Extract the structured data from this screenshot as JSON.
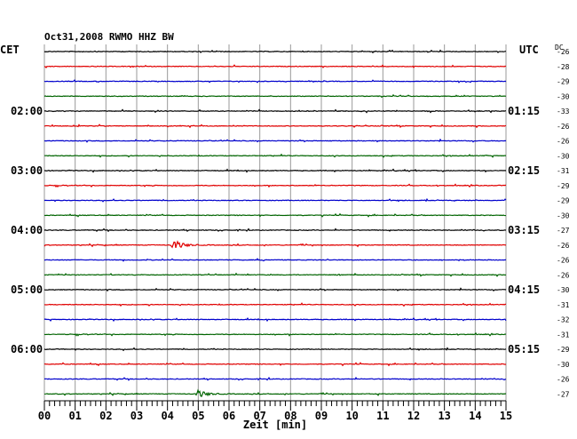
{
  "title": "Oct31,2008   RWMO HHZ BW",
  "left_axis_label": "CET",
  "right_axis_label": "UTC",
  "dc_label": "DC",
  "chart_data": {
    "type": "line",
    "title": "Oct31,2008   RWMO HHZ BW",
    "xlabel": "Zeit [min]",
    "xlim": [
      0,
      15
    ],
    "x_ticks": [
      "00",
      "01",
      "02",
      "03",
      "04",
      "05",
      "06",
      "07",
      "08",
      "09",
      "10",
      "11",
      "12",
      "13",
      "14",
      "15"
    ],
    "trace_colors": [
      "#000000",
      "#e00000",
      "#0000cc",
      "#006400"
    ],
    "traces": [
      {
        "color": "#000000",
        "dc": "-26"
      },
      {
        "color": "#e00000",
        "dc": "-28"
      },
      {
        "color": "#0000cc",
        "dc": "-29"
      },
      {
        "color": "#006400",
        "dc": "-30"
      },
      {
        "color": "#000000",
        "dc": "-33",
        "cet": "02:00",
        "utc": "01:15"
      },
      {
        "color": "#e00000",
        "dc": "-26"
      },
      {
        "color": "#0000cc",
        "dc": "-26"
      },
      {
        "color": "#006400",
        "dc": "-30"
      },
      {
        "color": "#000000",
        "dc": "-31",
        "cet": "03:00",
        "utc": "02:15"
      },
      {
        "color": "#e00000",
        "dc": "-29"
      },
      {
        "color": "#0000cc",
        "dc": "-29"
      },
      {
        "color": "#006400",
        "dc": "-30"
      },
      {
        "color": "#000000",
        "dc": "-27",
        "cet": "04:00",
        "utc": "03:15"
      },
      {
        "color": "#e00000",
        "dc": "-26",
        "event": {
          "x_min": 4.2,
          "amplitude": "medium"
        }
      },
      {
        "color": "#0000cc",
        "dc": "-26"
      },
      {
        "color": "#006400",
        "dc": "-26"
      },
      {
        "color": "#000000",
        "dc": "-30",
        "cet": "05:00",
        "utc": "04:15"
      },
      {
        "color": "#e00000",
        "dc": "-31"
      },
      {
        "color": "#0000cc",
        "dc": "-32"
      },
      {
        "color": "#006400",
        "dc": "-31"
      },
      {
        "color": "#000000",
        "dc": "-29",
        "cet": "06:00",
        "utc": "05:15"
      },
      {
        "color": "#e00000",
        "dc": "-30"
      },
      {
        "color": "#0000cc",
        "dc": "-26"
      },
      {
        "color": "#006400",
        "dc": "-27",
        "event": {
          "x_min": 5.0,
          "amplitude": "large"
        }
      }
    ]
  }
}
